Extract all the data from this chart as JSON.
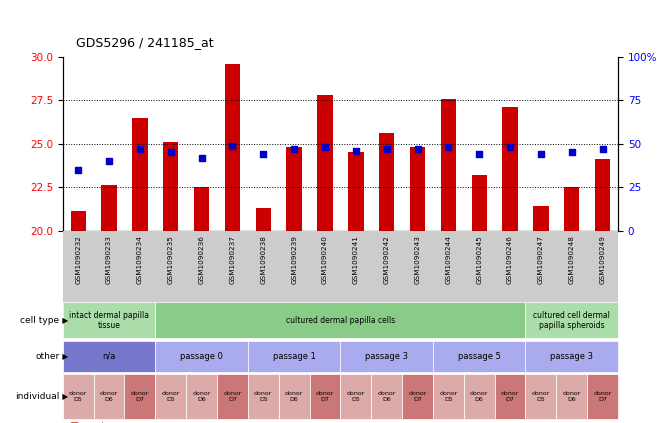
{
  "title": "GDS5296 / 241185_at",
  "samples": [
    "GSM1090232",
    "GSM1090233",
    "GSM1090234",
    "GSM1090235",
    "GSM1090236",
    "GSM1090237",
    "GSM1090238",
    "GSM1090239",
    "GSM1090240",
    "GSM1090241",
    "GSM1090242",
    "GSM1090243",
    "GSM1090244",
    "GSM1090245",
    "GSM1090246",
    "GSM1090247",
    "GSM1090248",
    "GSM1090249"
  ],
  "count_values": [
    21.1,
    22.6,
    26.5,
    25.1,
    22.5,
    29.6,
    21.3,
    24.8,
    27.8,
    24.5,
    25.6,
    24.8,
    27.6,
    23.2,
    27.1,
    21.4,
    22.5,
    24.1
  ],
  "percentile_values": [
    35,
    40,
    47,
    45,
    42,
    49,
    44,
    47,
    48,
    46,
    47,
    47,
    48,
    44,
    48,
    44,
    45,
    47
  ],
  "ylim_left": [
    20,
    30
  ],
  "ylim_right": [
    0,
    100
  ],
  "yticks_left": [
    20,
    22.5,
    25,
    27.5,
    30
  ],
  "yticks_right": [
    0,
    25,
    50,
    75,
    100
  ],
  "bar_color": "#cc0000",
  "dot_color": "#0000cc",
  "cell_type_groups": [
    {
      "label": "intact dermal papilla\ntissue",
      "start": 0,
      "end": 3,
      "color": "#aaddaa"
    },
    {
      "label": "cultured dermal papilla cells",
      "start": 3,
      "end": 15,
      "color": "#88cc88"
    },
    {
      "label": "cultured cell dermal\npapilla spheroids",
      "start": 15,
      "end": 18,
      "color": "#aaddaa"
    }
  ],
  "other_groups": [
    {
      "label": "n/a",
      "start": 0,
      "end": 3,
      "color": "#7777cc"
    },
    {
      "label": "passage 0",
      "start": 3,
      "end": 6,
      "color": "#aaaaee"
    },
    {
      "label": "passage 1",
      "start": 6,
      "end": 9,
      "color": "#aaaaee"
    },
    {
      "label": "passage 3",
      "start": 9,
      "end": 12,
      "color": "#aaaaee"
    },
    {
      "label": "passage 5",
      "start": 12,
      "end": 15,
      "color": "#aaaaee"
    },
    {
      "label": "passage 3",
      "start": 15,
      "end": 18,
      "color": "#aaaaee"
    }
  ],
  "individual_labels": [
    "donor\nD5",
    "donor\nD6",
    "donor\nD7",
    "donor\nD5",
    "donor\nD6",
    "donor\nD7",
    "donor\nD5",
    "donor\nD6",
    "donor\nD7",
    "donor\nD5",
    "donor\nD6",
    "donor\nD7",
    "donor\nD5",
    "donor\nD6",
    "donor\nD7",
    "donor\nD5",
    "donor\nD6",
    "donor\nD7"
  ],
  "individual_colors": [
    "#ddaaaa",
    "#ddaaaa",
    "#cc7777",
    "#ddaaaa",
    "#ddaaaa",
    "#cc7777",
    "#ddaaaa",
    "#ddaaaa",
    "#cc7777",
    "#ddaaaa",
    "#ddaaaa",
    "#cc7777",
    "#ddaaaa",
    "#ddaaaa",
    "#cc7777",
    "#ddaaaa",
    "#ddaaaa",
    "#cc7777"
  ]
}
